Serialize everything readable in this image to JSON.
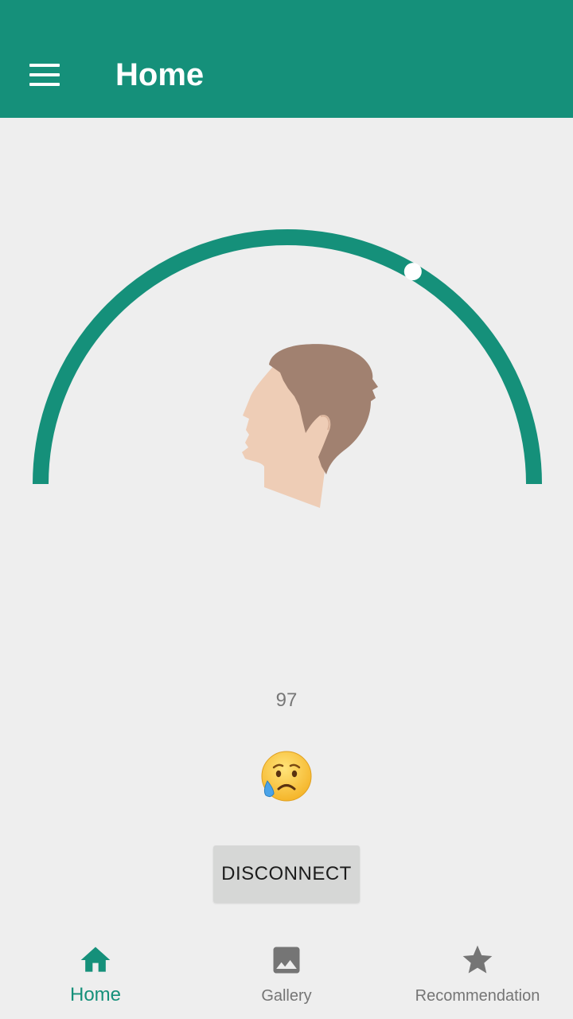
{
  "appbar": {
    "title": "Home",
    "menu_icon": "hamburger-menu-icon"
  },
  "gauge": {
    "level": 0.67,
    "track_color": "#15907a",
    "knob_color": "#ffffff",
    "center_icon": "head-profile-icon"
  },
  "reading": {
    "value": "97"
  },
  "mood": {
    "icon": "sad-relieved-face-icon"
  },
  "actions": {
    "disconnect_label": "DISCONNECT"
  },
  "bottom_nav": {
    "items": [
      {
        "label": "Home",
        "icon": "home-icon",
        "active": true
      },
      {
        "label": "Gallery",
        "icon": "image-icon",
        "active": false
      },
      {
        "label": "Recommendation",
        "icon": "star-icon",
        "active": false
      }
    ]
  },
  "colors": {
    "primary": "#15907a",
    "background": "#eeeeee",
    "inactive": "#757575"
  }
}
